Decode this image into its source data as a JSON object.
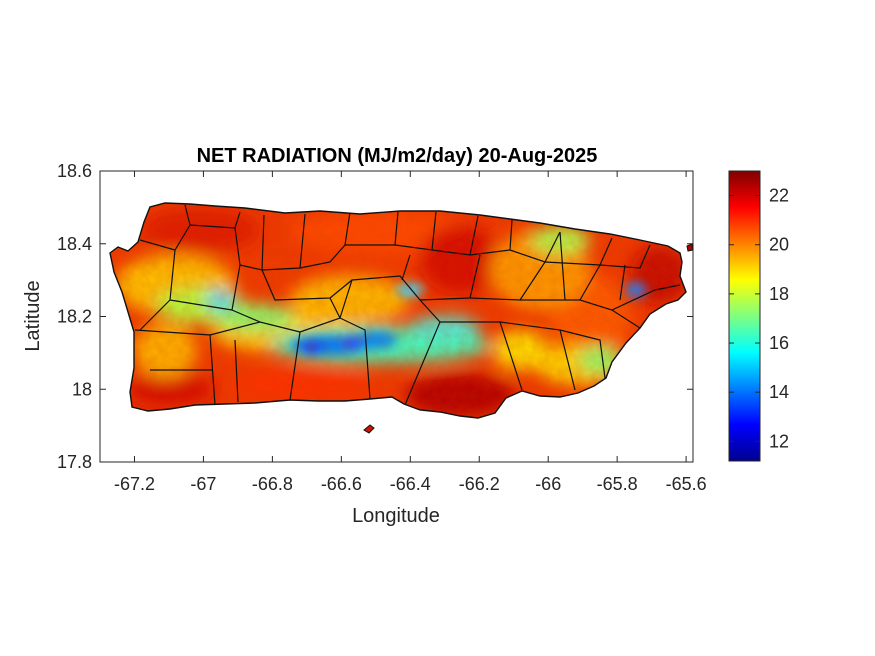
{
  "title": "NET RADIATION (MJ/m2/day) 20-Aug-2025",
  "xlabel": "Longitude",
  "ylabel": "Latitude",
  "x_ticks": [
    "-67.2",
    "-67",
    "-66.8",
    "-66.6",
    "-66.4",
    "-66.2",
    "-66",
    "-65.8",
    "-65.6"
  ],
  "y_ticks": [
    "18.6",
    "18.4",
    "18.2",
    "18",
    "17.8"
  ],
  "colorbar_ticks": [
    "22",
    "20",
    "18",
    "16",
    "14",
    "12"
  ],
  "chart_data": {
    "type": "heatmap",
    "title": "NET RADIATION (MJ/m2/day) 20-Aug-2025",
    "xlabel": "Longitude",
    "ylabel": "Latitude",
    "xlim": [
      -67.3,
      -65.58
    ],
    "ylim": [
      17.8,
      18.6
    ],
    "x_tick_values": [
      -67.2,
      -67,
      -66.8,
      -66.6,
      -66.4,
      -66.2,
      -66,
      -65.8,
      -65.6
    ],
    "y_tick_values": [
      18.6,
      18.4,
      18.2,
      18,
      17.8
    ],
    "colorbar": {
      "colormap": "jet",
      "range": [
        11.2,
        23.0
      ],
      "tick_values": [
        22,
        20,
        18,
        16,
        14,
        12
      ]
    },
    "regions": [
      {
        "region": "central mountains (lon -66.75 to -66.35, lat ~18.12)",
        "approx_value": 14.5
      },
      {
        "region": "west-central interior (lon -67.1 to -66.8, lat ~18.23)",
        "approx_value": 18
      },
      {
        "region": "east interior (lon ~-65.85, lat ~18.27)",
        "approx_value": 15.5
      },
      {
        "region": "north coast",
        "approx_value": 22
      },
      {
        "region": "south coast (lon ~-66.35, lat ~17.98)",
        "approx_value": 22.5
      },
      {
        "region": "northeast coast",
        "approx_value": 22.5
      }
    ],
    "grid": false
  }
}
